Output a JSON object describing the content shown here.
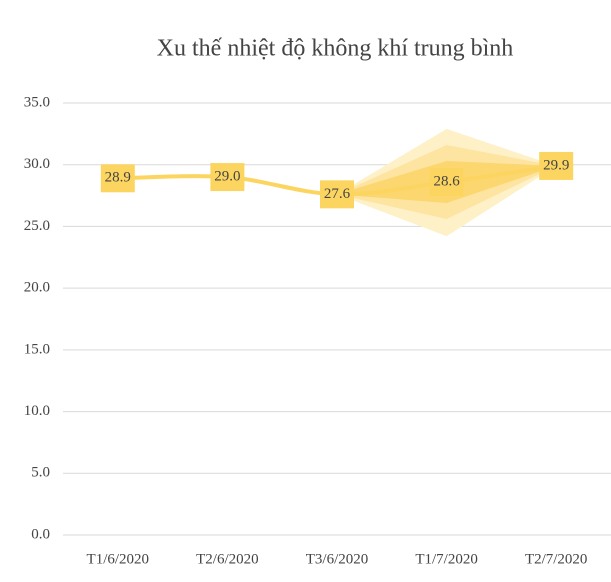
{
  "chart_data": {
    "type": "line",
    "title": "Xu thế nhiệt độ không khí trung bình",
    "categories": [
      "T1/6/2020",
      "T2/6/2020",
      "T3/6/2020",
      "T1/7/2020",
      "T2/7/2020"
    ],
    "series": [
      {
        "color": "#fcd561",
        "values": [
          28.9,
          29.0,
          27.6,
          28.6,
          29.9
        ],
        "value_labels": [
          "28.9",
          "29.0",
          "27.6",
          "28.6",
          "29.9"
        ]
      }
    ],
    "bands": [
      {
        "color": "#fef1c8",
        "lower": [
          null,
          null,
          27.6,
          24.2,
          29.9
        ],
        "upper": [
          null,
          null,
          27.6,
          32.9,
          29.9
        ]
      },
      {
        "color": "#fde4a0",
        "lower": [
          null,
          null,
          27.6,
          25.6,
          29.9
        ],
        "upper": [
          null,
          null,
          27.6,
          31.6,
          29.9
        ]
      },
      {
        "color": "#fcd66e",
        "lower": [
          null,
          null,
          27.6,
          26.9,
          29.9
        ],
        "upper": [
          null,
          null,
          27.6,
          30.3,
          29.9
        ]
      }
    ],
    "ylim": [
      0,
      35
    ],
    "yticks": [
      {
        "value": 0,
        "label": "0.0"
      },
      {
        "value": 5,
        "label": "5.0"
      },
      {
        "value": 10,
        "label": "10.0"
      },
      {
        "value": 15,
        "label": "15.0"
      },
      {
        "value": 20,
        "label": "20.0"
      },
      {
        "value": 25,
        "label": "25.0"
      },
      {
        "value": 30,
        "label": "30.0"
      },
      {
        "value": 35,
        "label": "35.0"
      }
    ],
    "grid": true
  }
}
